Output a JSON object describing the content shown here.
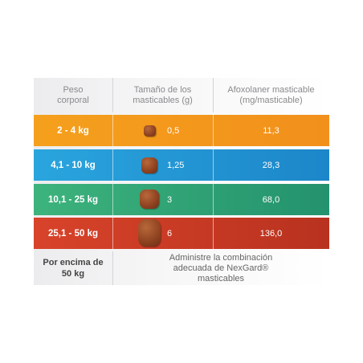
{
  "table": {
    "header": [
      "Peso corporal",
      "Tamaño de los masticables (g)",
      "Afoxolaner masticable (mg/masticable)"
    ],
    "rows": [
      [
        "2 - 4 kg",
        "0,5",
        "11,3"
      ],
      [
        "4,1 - 10 kg",
        "1,25",
        "28,3"
      ],
      [
        "10,1 - 25 kg",
        "3",
        "68,0"
      ],
      [
        "25,1 - 50 kg",
        "6",
        "136,0"
      ]
    ],
    "footer": [
      "Por encima de 50 kg",
      "Administre la combinación adecuada de NexGard® masticables"
    ]
  }
}
